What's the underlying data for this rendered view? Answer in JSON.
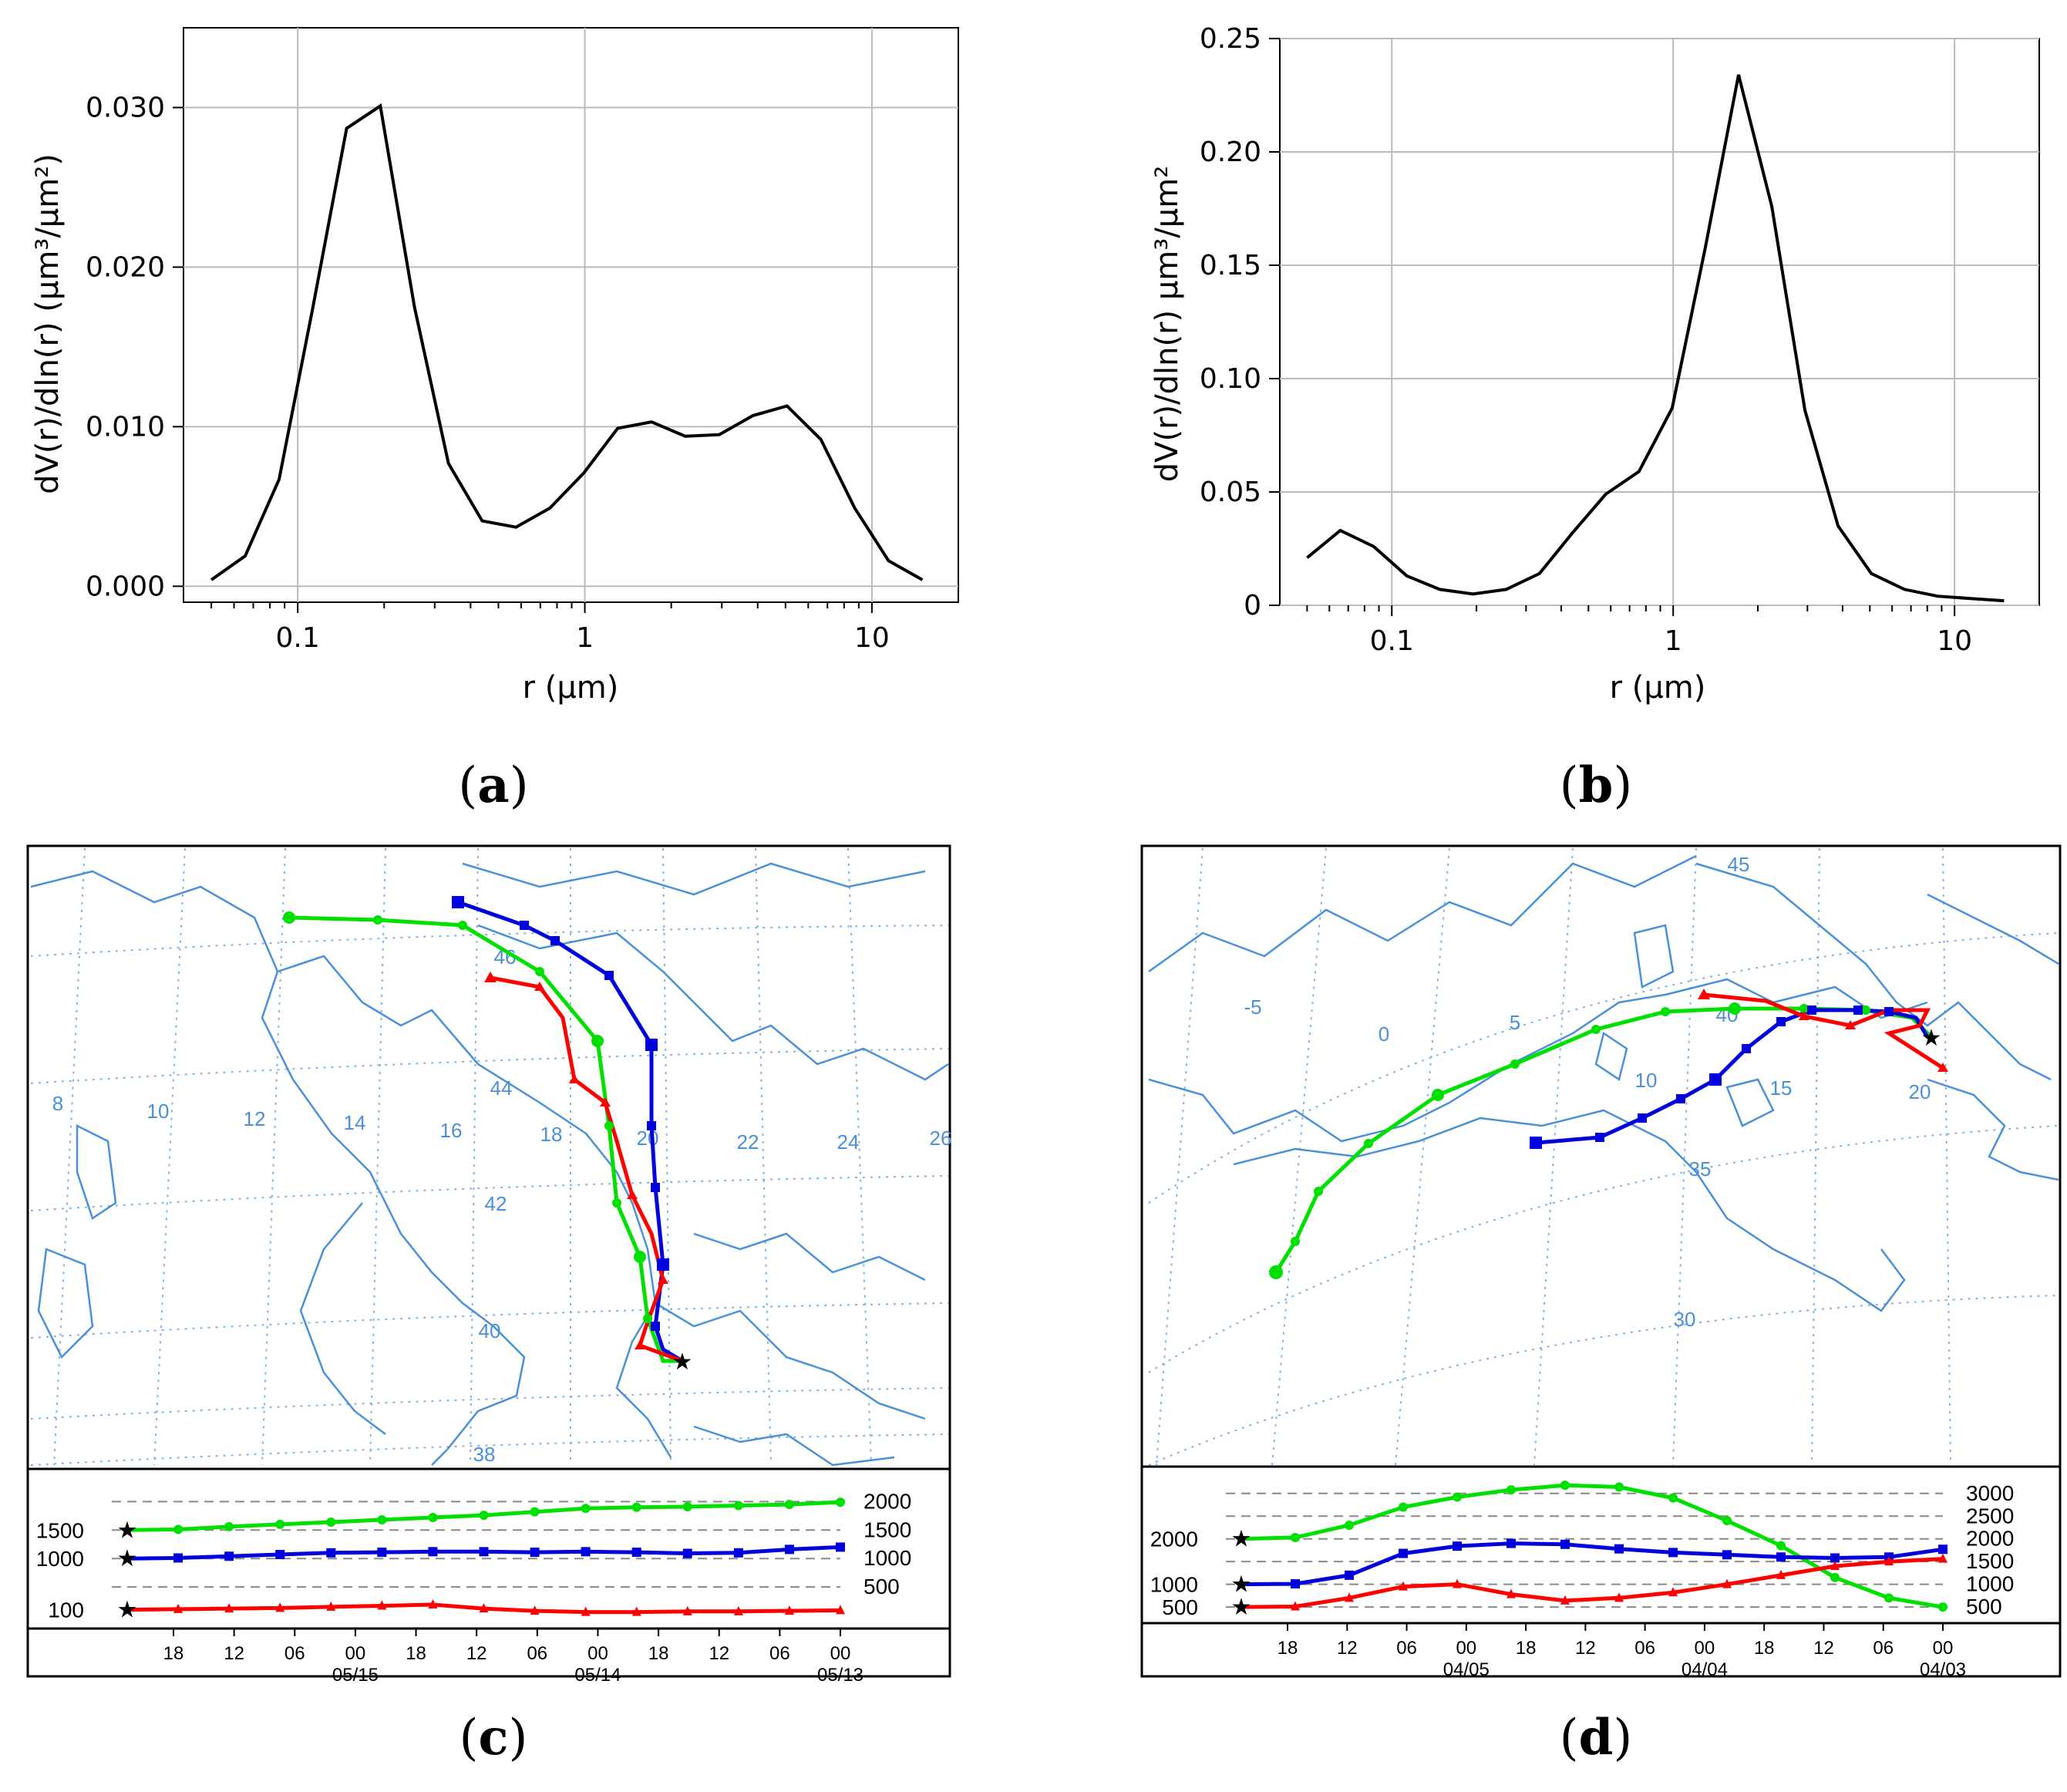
{
  "chart_data": [
    {
      "panel": "a",
      "type": "line",
      "xscale": "log",
      "xlim": [
        0.04,
        20
      ],
      "ylim": [
        -0.001,
        0.035
      ],
      "xlabel": "r (μm)",
      "ylabel": "dV(r)/dln(r)   (μm³/μm²)",
      "xticks": [
        0.1,
        1,
        10
      ],
      "xtick_labels": [
        "0.1",
        "1",
        "10"
      ],
      "yticks": [
        0.0,
        0.01,
        0.02,
        0.03
      ],
      "ytick_labels": [
        "0.000",
        "0.010",
        "0.020",
        "0.030"
      ],
      "x": [
        0.05,
        0.0656,
        0.0861,
        0.113,
        0.148,
        0.194,
        0.255,
        0.335,
        0.439,
        0.576,
        0.756,
        0.992,
        1.302,
        1.708,
        2.241,
        2.94,
        3.857,
        5.061,
        6.641,
        8.713,
        11.432,
        15.0
      ],
      "y": [
        0.0004,
        0.0019,
        0.0067,
        0.0175,
        0.0287,
        0.0301,
        0.0175,
        0.0077,
        0.0041,
        0.0037,
        0.0049,
        0.0071,
        0.0099,
        0.0103,
        0.0094,
        0.0095,
        0.0107,
        0.0113,
        0.0092,
        0.0049,
        0.0016,
        0.0004
      ],
      "grid": true
    },
    {
      "panel": "b",
      "type": "line",
      "xscale": "log",
      "xlim": [
        0.04,
        20
      ],
      "ylim": [
        0,
        0.25
      ],
      "xlabel": "r (μm)",
      "ylabel": "dV(r)/dln(r)   μm³/μm²",
      "xticks": [
        0.1,
        1,
        10
      ],
      "xtick_labels": [
        "0.1",
        "1",
        "10"
      ],
      "yticks": [
        0,
        0.05,
        0.1,
        0.15,
        0.2,
        0.25
      ],
      "ytick_labels": [
        "0",
        "0.05",
        "0.10",
        "0.15",
        "0.20",
        "0.25"
      ],
      "x": [
        0.05,
        0.0656,
        0.0861,
        0.113,
        0.148,
        0.194,
        0.255,
        0.335,
        0.439,
        0.576,
        0.756,
        0.992,
        1.302,
        1.708,
        2.241,
        2.94,
        3.857,
        5.061,
        6.641,
        8.713,
        11.432,
        15.0
      ],
      "y": [
        0.021,
        0.033,
        0.026,
        0.013,
        0.007,
        0.005,
        0.007,
        0.014,
        0.032,
        0.049,
        0.059,
        0.087,
        0.158,
        0.234,
        0.176,
        0.086,
        0.035,
        0.014,
        0.007,
        0.004,
        0.003,
        0.002
      ],
      "grid": true
    },
    {
      "panel": "c",
      "type": "line",
      "description_title": "Backward trajectories (map + height panel)",
      "map_labels": [
        "8",
        "10",
        "12",
        "14",
        "16",
        "18",
        "20",
        "22",
        "24",
        "26",
        "46",
        "44",
        "42",
        "40",
        "38"
      ],
      "time_ticks": [
        "18",
        "12",
        "06",
        "00",
        "18",
        "12",
        "06",
        "00",
        "18",
        "12",
        "06",
        "00"
      ],
      "date_labels": [
        "05/15",
        "05/14",
        "05/13"
      ],
      "height_levels_right": [
        "2000",
        "1500",
        "1000",
        "500"
      ],
      "start_heights_left": [
        "1500",
        "1000",
        "100"
      ],
      "series": [
        {
          "name": "1500 m",
          "color": "#00e000",
          "values": [
            1500,
            1510,
            1560,
            1600,
            1640,
            1680,
            1720,
            1760,
            1820,
            1880,
            1900,
            1910,
            1930,
            1950,
            1990
          ]
        },
        {
          "name": "1000 m",
          "color": "#0000dd",
          "values": [
            1000,
            1010,
            1040,
            1070,
            1100,
            1110,
            1120,
            1120,
            1110,
            1120,
            1110,
            1090,
            1100,
            1160,
            1200
          ]
        },
        {
          "name": "100 m",
          "color": "#ff0000",
          "values": [
            100,
            110,
            120,
            130,
            150,
            170,
            190,
            120,
            80,
            60,
            60,
            70,
            70,
            80,
            90
          ]
        }
      ]
    },
    {
      "panel": "d",
      "type": "line",
      "description_title": "Backward trajectories (map + height panel)",
      "map_labels": [
        "45",
        "-5",
        "0",
        "5",
        "10",
        "15",
        "20",
        "40",
        "35",
        "30"
      ],
      "time_ticks": [
        "18",
        "12",
        "06",
        "00",
        "18",
        "12",
        "06",
        "00",
        "18",
        "12",
        "06",
        "00"
      ],
      "date_labels": [
        "04/05",
        "04/04",
        "04/03"
      ],
      "height_levels_right": [
        "3000",
        "2500",
        "2000",
        "1500",
        "1000",
        "500"
      ],
      "start_heights_left": [
        "2000",
        "1000",
        "500"
      ],
      "series": [
        {
          "name": "2000 m",
          "color": "#00e000",
          "values": [
            2000,
            2030,
            2300,
            2700,
            2920,
            3080,
            3180,
            3140,
            2900,
            2400,
            1850,
            1150,
            700,
            500
          ]
        },
        {
          "name": "1000 m",
          "color": "#0000dd",
          "values": [
            1000,
            1010,
            1200,
            1680,
            1840,
            1900,
            1880,
            1780,
            1700,
            1650,
            1600,
            1580,
            1600,
            1770
          ]
        },
        {
          "name": "500 m",
          "color": "#ff0000",
          "values": [
            500,
            510,
            700,
            950,
            1000,
            780,
            640,
            700,
            820,
            1000,
            1200,
            1400,
            1500,
            1560
          ]
        }
      ]
    }
  ],
  "panel_labels": {
    "a": "(a)",
    "b": "(b)",
    "c": "(c)",
    "d": "(d)"
  }
}
